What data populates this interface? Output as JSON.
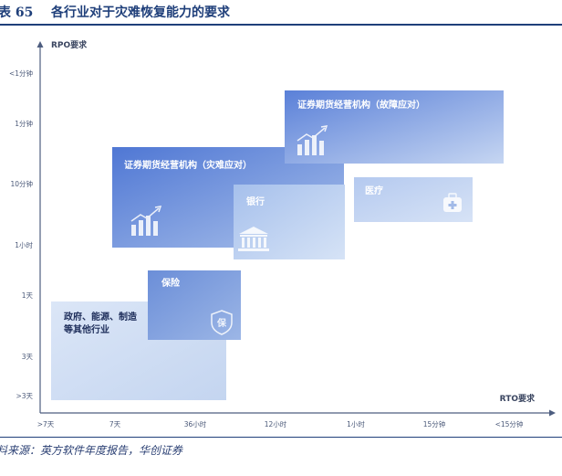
{
  "caption": {
    "number": "表 65",
    "title": "各行业对于灾难恢复能力的要求"
  },
  "source": "料来源：英方软件年度报告，华创证券",
  "chart_data": {
    "type": "matrix",
    "y_axis_title": "RPO要求",
    "x_axis_title": "RTO要求",
    "y_ticks": [
      "<1分钟",
      "1分钟",
      "10分钟",
      "1小时",
      "1天",
      "3天",
      ">3天"
    ],
    "x_ticks": [
      ">7天",
      "7天",
      "36小时",
      "12小时",
      "1小时",
      "15分钟",
      "<15分钟"
    ],
    "regions": [
      {
        "label": "政府、能源、制造\n等其他行业",
        "rto": [
          ">7天",
          "36小时"
        ],
        "rpo": [
          ">3天",
          "1天"
        ],
        "icon": "none-icon"
      },
      {
        "label": "保险",
        "rto": [
          "7天",
          "36小时"
        ],
        "rpo": [
          "3天",
          "1天"
        ],
        "icon": "shield-icon"
      },
      {
        "label": "证券期货经营机构（灾难应对）",
        "rto": [
          "7天",
          "12小时"
        ],
        "rpo": [
          "1小时",
          "10分钟"
        ],
        "icon": "bar-chart-icon"
      },
      {
        "label": "银行",
        "rto": [
          "36小时",
          "12小时"
        ],
        "rpo": [
          "1小时",
          "10分钟"
        ],
        "icon": "bank-icon"
      },
      {
        "label": "证券期货经营机构（故障应对）",
        "rto": [
          "12小时",
          "<15分钟"
        ],
        "rpo": [
          "10分钟",
          "1分钟"
        ],
        "icon": "bar-chart-icon"
      },
      {
        "label": "医疗",
        "rto": [
          "1小时",
          "15分钟"
        ],
        "rpo": [
          "1小时",
          "10分钟"
        ],
        "icon": "medical-kit-icon"
      }
    ]
  }
}
